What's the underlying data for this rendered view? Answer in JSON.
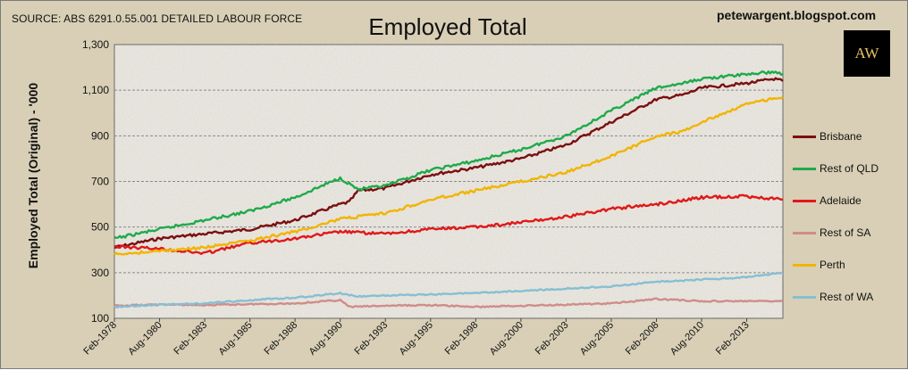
{
  "source_note": "SOURCE: ABS 6291.0.55.001 DETAILED LABOUR FORCE",
  "blog": "petewargent.blogspot.com",
  "logo_text": "AW",
  "colors": {
    "background": "#d8cfb6",
    "plot_area": "#e9e6df",
    "logo_bg": "#000000",
    "logo_text": "#e7c46a"
  },
  "chart_data": {
    "type": "line",
    "title": "Employed Total",
    "xlabel": "",
    "ylabel": "Employed Total (Original) - '000",
    "ylim": [
      100,
      1300
    ],
    "yticks": [
      100,
      300,
      500,
      700,
      900,
      1100,
      1300
    ],
    "ytick_labels": [
      "100",
      "300",
      "500",
      "700",
      "900",
      "1,100",
      "1,300"
    ],
    "xlim": [
      "1978-02",
      "2015-02"
    ],
    "xtick_labels": [
      "Feb-1978",
      "Aug-1980",
      "Feb-1983",
      "Aug-1985",
      "Feb-1988",
      "Aug-1990",
      "Feb-1993",
      "Aug-1995",
      "Feb-1998",
      "Aug-2000",
      "Feb-2003",
      "Aug-2005",
      "Feb-2008",
      "Aug-2010",
      "Feb-2013"
    ],
    "grid": true,
    "legend_position": "right",
    "series": [
      {
        "name": "Brisbane",
        "color": "#7b0f0f",
        "points": [
          [
            "1978-02",
            410
          ],
          [
            "1980-08",
            450
          ],
          [
            "1983-02",
            470
          ],
          [
            "1985-08",
            490
          ],
          [
            "1988-02",
            530
          ],
          [
            "1990-08",
            600
          ],
          [
            "1991-02",
            610
          ],
          [
            "1991-08",
            660
          ],
          [
            "1993-02",
            670
          ],
          [
            "1995-08",
            730
          ],
          [
            "1998-02",
            760
          ],
          [
            "2000-08",
            800
          ],
          [
            "2003-02",
            860
          ],
          [
            "2005-08",
            960
          ],
          [
            "2008-02",
            1060
          ],
          [
            "2009-08",
            1080
          ],
          [
            "2010-08",
            1110
          ],
          [
            "2013-02",
            1130
          ],
          [
            "2014-08",
            1150
          ],
          [
            "2015-02",
            1140
          ]
        ]
      },
      {
        "name": "Rest of QLD",
        "color": "#1faa4a",
        "points": [
          [
            "1978-02",
            450
          ],
          [
            "1980-08",
            490
          ],
          [
            "1983-02",
            530
          ],
          [
            "1985-08",
            570
          ],
          [
            "1988-02",
            630
          ],
          [
            "1990-08",
            715
          ],
          [
            "1991-08",
            665
          ],
          [
            "1993-02",
            680
          ],
          [
            "1995-08",
            750
          ],
          [
            "1998-02",
            790
          ],
          [
            "2000-08",
            840
          ],
          [
            "2003-02",
            900
          ],
          [
            "2005-08",
            1010
          ],
          [
            "2008-02",
            1110
          ],
          [
            "2009-08",
            1130
          ],
          [
            "2010-08",
            1150
          ],
          [
            "2013-02",
            1170
          ],
          [
            "2014-08",
            1180
          ],
          [
            "2015-02",
            1170
          ]
        ]
      },
      {
        "name": "Adelaide",
        "color": "#e01818",
        "points": [
          [
            "1978-02",
            415
          ],
          [
            "1980-08",
            405
          ],
          [
            "1983-02",
            385
          ],
          [
            "1985-08",
            430
          ],
          [
            "1988-02",
            450
          ],
          [
            "1990-08",
            480
          ],
          [
            "1993-02",
            470
          ],
          [
            "1995-08",
            490
          ],
          [
            "1998-02",
            500
          ],
          [
            "2000-08",
            520
          ],
          [
            "2003-02",
            545
          ],
          [
            "2005-08",
            580
          ],
          [
            "2008-02",
            600
          ],
          [
            "2010-08",
            630
          ],
          [
            "2013-02",
            635
          ],
          [
            "2015-02",
            620
          ]
        ]
      },
      {
        "name": "Rest of SA",
        "color": "#d08c8a",
        "points": [
          [
            "1978-02",
            155
          ],
          [
            "1980-08",
            160
          ],
          [
            "1983-02",
            158
          ],
          [
            "1985-08",
            162
          ],
          [
            "1988-02",
            165
          ],
          [
            "1990-08",
            180
          ],
          [
            "1991-02",
            150
          ],
          [
            "1993-02",
            155
          ],
          [
            "1995-08",
            158
          ],
          [
            "1998-02",
            150
          ],
          [
            "2000-08",
            155
          ],
          [
            "2003-02",
            160
          ],
          [
            "2005-08",
            165
          ],
          [
            "2008-02",
            185
          ],
          [
            "2010-08",
            175
          ],
          [
            "2013-02",
            175
          ],
          [
            "2015-02",
            175
          ]
        ]
      },
      {
        "name": "Perth",
        "color": "#f2b400",
        "points": [
          [
            "1978-02",
            380
          ],
          [
            "1980-08",
            395
          ],
          [
            "1983-02",
            410
          ],
          [
            "1985-08",
            440
          ],
          [
            "1988-02",
            480
          ],
          [
            "1990-08",
            535
          ],
          [
            "1993-02",
            560
          ],
          [
            "1995-08",
            620
          ],
          [
            "1998-02",
            660
          ],
          [
            "2000-08",
            700
          ],
          [
            "2003-02",
            740
          ],
          [
            "2005-08",
            810
          ],
          [
            "2008-02",
            900
          ],
          [
            "2009-08",
            920
          ],
          [
            "2010-08",
            960
          ],
          [
            "2013-02",
            1040
          ],
          [
            "2015-02",
            1070
          ]
        ]
      },
      {
        "name": "Rest of WA",
        "color": "#86bfd3",
        "points": [
          [
            "1978-02",
            150
          ],
          [
            "1980-08",
            160
          ],
          [
            "1983-02",
            165
          ],
          [
            "1985-08",
            180
          ],
          [
            "1988-02",
            190
          ],
          [
            "1990-08",
            210
          ],
          [
            "1991-08",
            195
          ],
          [
            "1993-02",
            200
          ],
          [
            "1995-08",
            205
          ],
          [
            "1998-02",
            210
          ],
          [
            "2000-08",
            220
          ],
          [
            "2003-02",
            230
          ],
          [
            "2005-08",
            240
          ],
          [
            "2008-02",
            260
          ],
          [
            "2010-08",
            270
          ],
          [
            "2013-02",
            280
          ],
          [
            "2015-02",
            300
          ]
        ]
      }
    ]
  }
}
